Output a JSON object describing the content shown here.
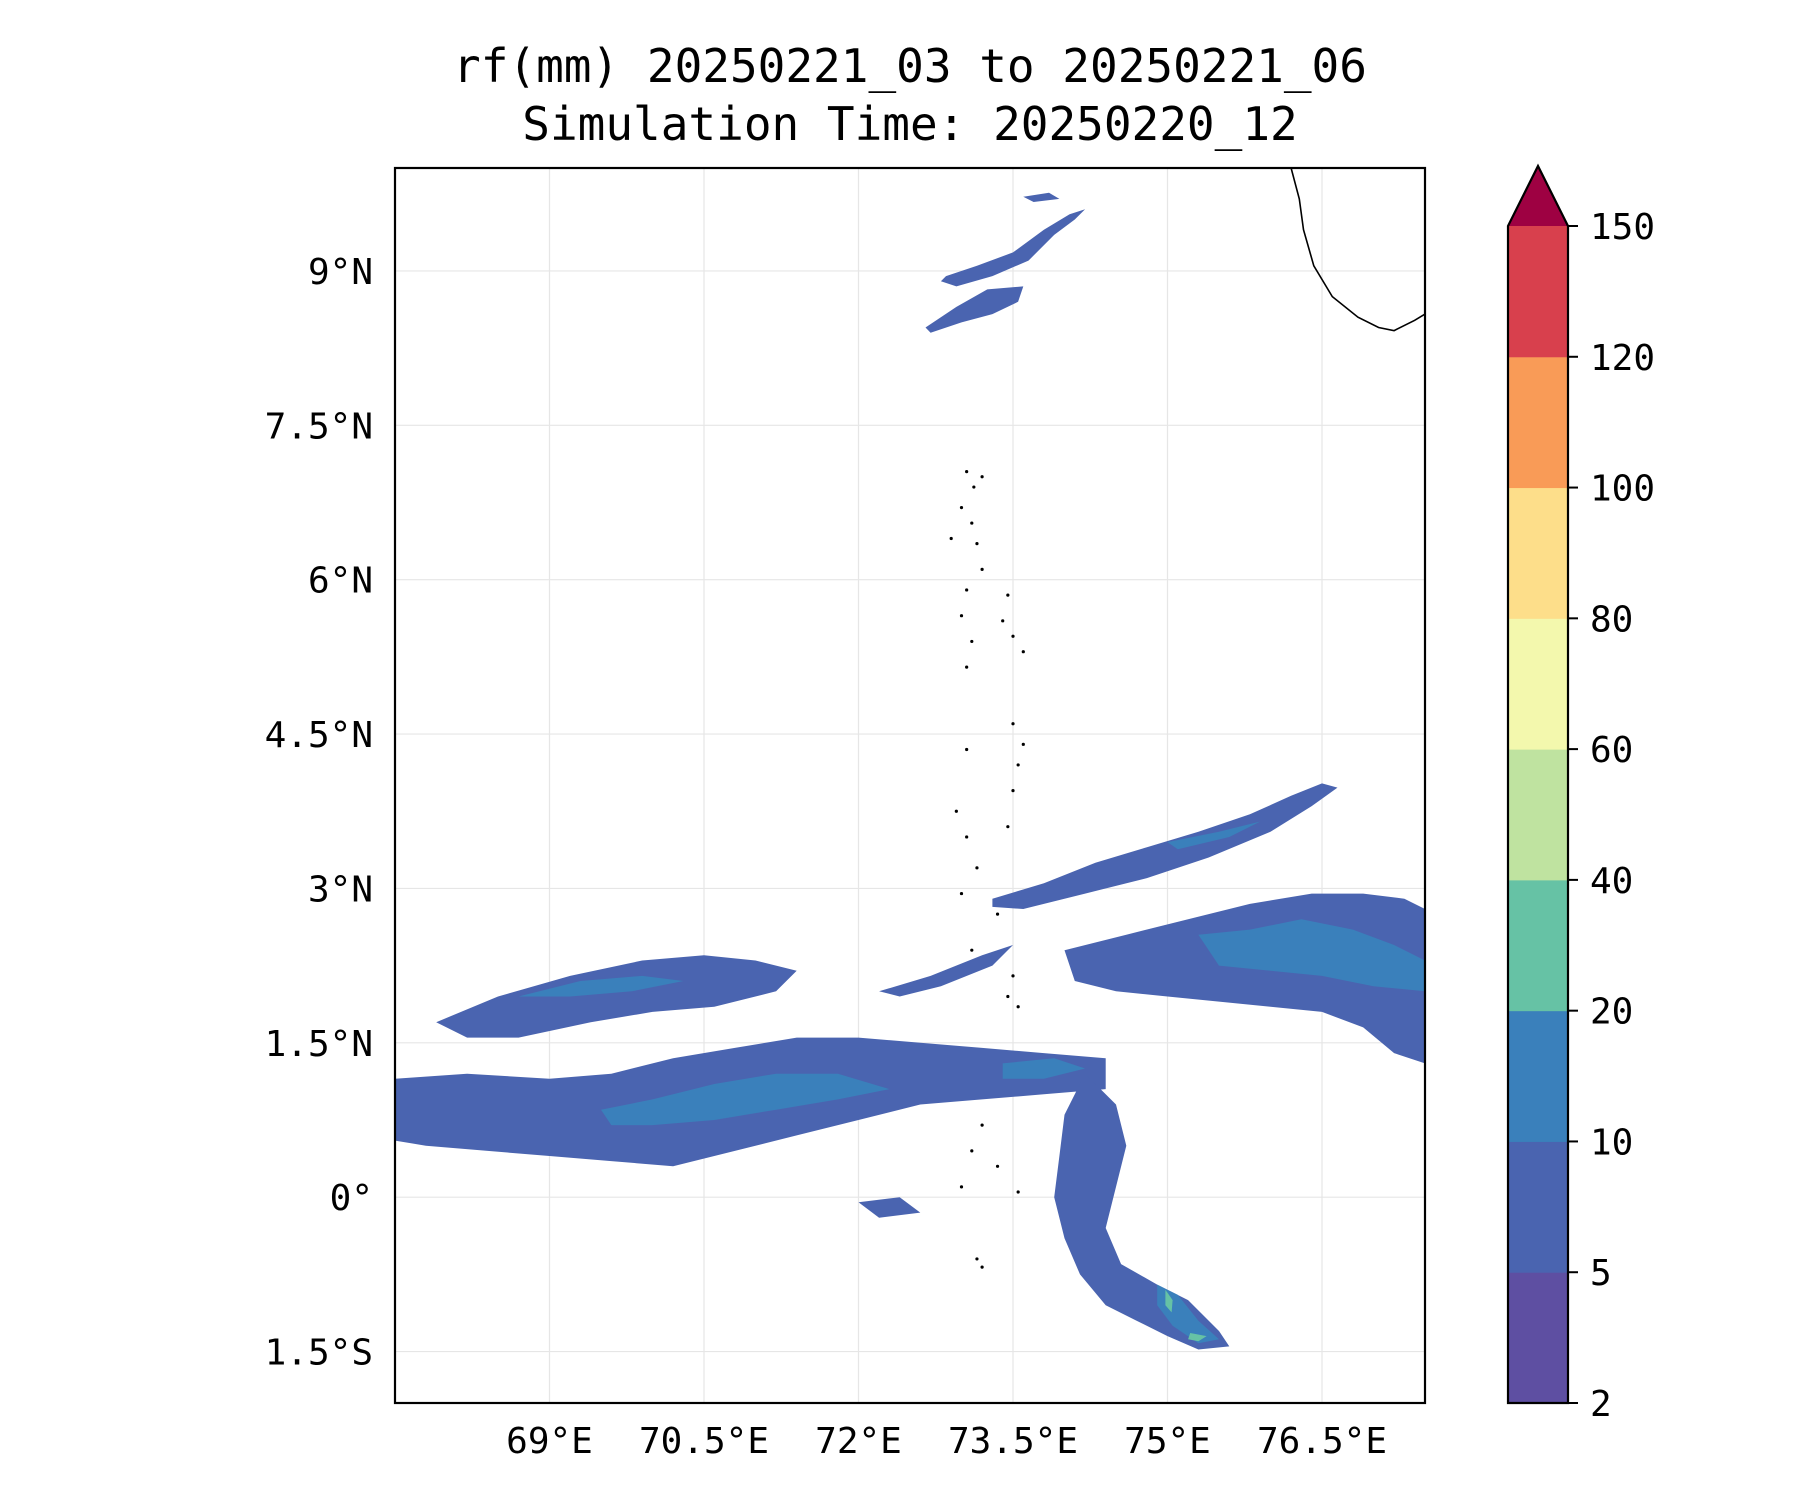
{
  "chart_data": {
    "type": "heatmap",
    "title": "rf(mm) 20250221_03 to 20250221_06",
    "subtitle": "Simulation Time: 20250220_12",
    "xlabel": "",
    "ylabel": "",
    "xlim": [
      67.5,
      77.5
    ],
    "ylim": [
      -2.0,
      10.0
    ],
    "x_ticks": [
      69,
      70.5,
      72,
      73.5,
      75,
      76.5
    ],
    "x_tick_labels": [
      "69°E",
      "70.5°E",
      "72°E",
      "73.5°E",
      "75°E",
      "76.5°E"
    ],
    "y_ticks": [
      9,
      7.5,
      6,
      4.5,
      3,
      1.5,
      0,
      -1.5
    ],
    "y_tick_labels": [
      "9°N",
      "7.5°N",
      "6°N",
      "4.5°N",
      "3°N",
      "1.5°N",
      "0°",
      "1.5°S"
    ],
    "grid": true,
    "colorbar": {
      "levels": [
        2,
        5,
        10,
        20,
        40,
        60,
        80,
        100,
        120,
        150
      ],
      "labels": [
        "2",
        "5",
        "10",
        "20",
        "40",
        "60",
        "80",
        "100",
        "120",
        "150"
      ],
      "colors": [
        "#5e4fa2",
        "#4a64b0",
        "#3a80bb",
        "#66c2a5",
        "#bfe3a0",
        "#f3f8ad",
        "#fdde8a",
        "#f99b57",
        "#d8404d"
      ],
      "extend_color": "#9e0142",
      "extend": "max"
    },
    "rain_regions": [
      {
        "name": "northern-band-upper",
        "level": 1,
        "points": [
          [
            72.85,
            8.95
          ],
          [
            73.15,
            9.05
          ],
          [
            73.5,
            9.18
          ],
          [
            73.8,
            9.4
          ],
          [
            74.05,
            9.55
          ],
          [
            74.2,
            9.6
          ],
          [
            74.1,
            9.5
          ],
          [
            73.9,
            9.35
          ],
          [
            73.65,
            9.1
          ],
          [
            73.3,
            8.95
          ],
          [
            72.95,
            8.85
          ],
          [
            72.8,
            8.9
          ]
        ]
      },
      {
        "name": "northern-band-lower",
        "level": 1,
        "points": [
          [
            72.65,
            8.45
          ],
          [
            72.95,
            8.65
          ],
          [
            73.25,
            8.82
          ],
          [
            73.6,
            8.85
          ],
          [
            73.55,
            8.7
          ],
          [
            73.3,
            8.58
          ],
          [
            73.0,
            8.5
          ],
          [
            72.7,
            8.4
          ]
        ]
      },
      {
        "name": "northern-fleck",
        "level": 1,
        "points": [
          [
            73.6,
            9.72
          ],
          [
            73.85,
            9.76
          ],
          [
            73.95,
            9.7
          ],
          [
            73.7,
            9.67
          ]
        ]
      },
      {
        "name": "central-north-arm",
        "level": 1,
        "points": [
          [
            73.3,
            2.9
          ],
          [
            73.8,
            3.05
          ],
          [
            74.3,
            3.25
          ],
          [
            74.8,
            3.4
          ],
          [
            75.3,
            3.55
          ],
          [
            75.8,
            3.72
          ],
          [
            76.2,
            3.9
          ],
          [
            76.5,
            4.02
          ],
          [
            76.65,
            3.98
          ],
          [
            76.4,
            3.8
          ],
          [
            76.0,
            3.55
          ],
          [
            75.4,
            3.3
          ],
          [
            74.8,
            3.1
          ],
          [
            74.2,
            2.95
          ],
          [
            73.6,
            2.8
          ],
          [
            73.3,
            2.82
          ]
        ]
      },
      {
        "name": "eastern-mass",
        "level": 1,
        "points": [
          [
            74.0,
            2.4
          ],
          [
            74.6,
            2.55
          ],
          [
            75.2,
            2.7
          ],
          [
            75.8,
            2.85
          ],
          [
            76.4,
            2.95
          ],
          [
            76.9,
            2.95
          ],
          [
            77.3,
            2.9
          ],
          [
            77.5,
            2.8
          ],
          [
            77.5,
            1.3
          ],
          [
            77.2,
            1.4
          ],
          [
            76.9,
            1.65
          ],
          [
            76.5,
            1.8
          ],
          [
            76.0,
            1.85
          ],
          [
            75.5,
            1.9
          ],
          [
            75.0,
            1.95
          ],
          [
            74.5,
            2.0
          ],
          [
            74.1,
            2.1
          ]
        ]
      },
      {
        "name": "central-mid-band",
        "level": 1,
        "points": [
          [
            72.2,
            2.0
          ],
          [
            72.7,
            2.15
          ],
          [
            73.2,
            2.35
          ],
          [
            73.5,
            2.45
          ],
          [
            73.3,
            2.25
          ],
          [
            72.8,
            2.05
          ],
          [
            72.4,
            1.95
          ]
        ]
      },
      {
        "name": "western-upper-band",
        "level": 1,
        "points": [
          [
            67.9,
            1.7
          ],
          [
            68.5,
            1.95
          ],
          [
            69.2,
            2.15
          ],
          [
            69.9,
            2.3
          ],
          [
            70.5,
            2.35
          ],
          [
            71.0,
            2.3
          ],
          [
            71.4,
            2.2
          ],
          [
            71.2,
            2.0
          ],
          [
            70.6,
            1.85
          ],
          [
            70.0,
            1.8
          ],
          [
            69.4,
            1.7
          ],
          [
            68.7,
            1.55
          ],
          [
            68.2,
            1.55
          ]
        ]
      },
      {
        "name": "western-main-band",
        "level": 1,
        "points": [
          [
            67.5,
            1.15
          ],
          [
            68.2,
            1.2
          ],
          [
            69.0,
            1.15
          ],
          [
            69.6,
            1.2
          ],
          [
            70.2,
            1.35
          ],
          [
            70.8,
            1.45
          ],
          [
            71.4,
            1.55
          ],
          [
            72.0,
            1.55
          ],
          [
            72.6,
            1.5
          ],
          [
            73.2,
            1.45
          ],
          [
            73.8,
            1.4
          ],
          [
            74.4,
            1.35
          ],
          [
            74.4,
            1.05
          ],
          [
            73.8,
            1.0
          ],
          [
            73.2,
            0.95
          ],
          [
            72.6,
            0.9
          ],
          [
            72.0,
            0.75
          ],
          [
            71.4,
            0.6
          ],
          [
            70.8,
            0.45
          ],
          [
            70.2,
            0.3
          ],
          [
            69.6,
            0.35
          ],
          [
            69.0,
            0.4
          ],
          [
            68.4,
            0.45
          ],
          [
            67.8,
            0.5
          ],
          [
            67.5,
            0.55
          ]
        ]
      },
      {
        "name": "southern-arm",
        "level": 1,
        "points": [
          [
            74.2,
            1.2
          ],
          [
            74.5,
            0.9
          ],
          [
            74.6,
            0.5
          ],
          [
            74.5,
            0.1
          ],
          [
            74.4,
            -0.3
          ],
          [
            74.55,
            -0.65
          ],
          [
            74.9,
            -0.85
          ],
          [
            75.2,
            -1.0
          ],
          [
            75.5,
            -1.3
          ],
          [
            75.6,
            -1.45
          ],
          [
            75.3,
            -1.48
          ],
          [
            75.0,
            -1.35
          ],
          [
            74.7,
            -1.2
          ],
          [
            74.4,
            -1.05
          ],
          [
            74.15,
            -0.75
          ],
          [
            74.0,
            -0.4
          ],
          [
            73.9,
            0.0
          ],
          [
            73.95,
            0.4
          ],
          [
            74.0,
            0.8
          ]
        ]
      },
      {
        "name": "southern-west-fleck",
        "level": 1,
        "points": [
          [
            72.0,
            -0.05
          ],
          [
            72.4,
            0.0
          ],
          [
            72.6,
            -0.15
          ],
          [
            72.2,
            -0.2
          ]
        ]
      },
      {
        "name": "eastern-core",
        "level": 2,
        "points": [
          [
            75.3,
            2.55
          ],
          [
            75.8,
            2.6
          ],
          [
            76.3,
            2.7
          ],
          [
            76.8,
            2.6
          ],
          [
            77.2,
            2.45
          ],
          [
            77.5,
            2.3
          ],
          [
            77.5,
            2.0
          ],
          [
            77.0,
            2.05
          ],
          [
            76.5,
            2.15
          ],
          [
            76.0,
            2.2
          ],
          [
            75.5,
            2.25
          ]
        ]
      },
      {
        "name": "western-core",
        "level": 2,
        "points": [
          [
            69.5,
            0.85
          ],
          [
            70.0,
            0.95
          ],
          [
            70.6,
            1.1
          ],
          [
            71.2,
            1.2
          ],
          [
            71.8,
            1.2
          ],
          [
            72.3,
            1.05
          ],
          [
            71.8,
            0.95
          ],
          [
            71.2,
            0.85
          ],
          [
            70.6,
            0.75
          ],
          [
            70.0,
            0.7
          ],
          [
            69.6,
            0.7
          ]
        ]
      },
      {
        "name": "western-upper-core",
        "level": 2,
        "points": [
          [
            68.7,
            1.95
          ],
          [
            69.3,
            2.1
          ],
          [
            69.9,
            2.15
          ],
          [
            70.3,
            2.1
          ],
          [
            69.8,
            2.0
          ],
          [
            69.2,
            1.95
          ]
        ]
      },
      {
        "name": "central-core",
        "level": 2,
        "points": [
          [
            73.4,
            1.3
          ],
          [
            73.9,
            1.35
          ],
          [
            74.2,
            1.25
          ],
          [
            73.8,
            1.15
          ],
          [
            73.4,
            1.15
          ]
        ]
      },
      {
        "name": "north-arm-core",
        "level": 2,
        "points": [
          [
            75.0,
            3.45
          ],
          [
            75.5,
            3.55
          ],
          [
            75.9,
            3.65
          ],
          [
            75.6,
            3.5
          ],
          [
            75.1,
            3.38
          ]
        ]
      },
      {
        "name": "southern-core",
        "level": 2,
        "points": [
          [
            74.9,
            -0.85
          ],
          [
            75.1,
            -0.95
          ],
          [
            75.3,
            -1.2
          ],
          [
            75.5,
            -1.38
          ],
          [
            75.3,
            -1.42
          ],
          [
            75.05,
            -1.25
          ],
          [
            74.9,
            -1.05
          ]
        ]
      },
      {
        "name": "southern-peak-a",
        "level": 3,
        "points": [
          [
            74.98,
            -0.9
          ],
          [
            75.05,
            -1.0
          ],
          [
            75.04,
            -1.12
          ],
          [
            74.98,
            -1.05
          ]
        ]
      },
      {
        "name": "southern-peak-b",
        "level": 3,
        "points": [
          [
            75.22,
            -1.32
          ],
          [
            75.38,
            -1.35
          ],
          [
            75.3,
            -1.4
          ],
          [
            75.2,
            -1.38
          ]
        ]
      }
    ],
    "coastline": [
      [
        76.2,
        10.0
      ],
      [
        76.28,
        9.7
      ],
      [
        76.32,
        9.4
      ],
      [
        76.42,
        9.05
      ],
      [
        76.6,
        8.75
      ],
      [
        76.85,
        8.55
      ],
      [
        77.05,
        8.45
      ],
      [
        77.2,
        8.42
      ],
      [
        77.4,
        8.52
      ],
      [
        77.5,
        8.58
      ]
    ],
    "islands": [
      [
        73.05,
        7.05
      ],
      [
        73.12,
        6.9
      ],
      [
        73.2,
        7.0
      ],
      [
        73.0,
        6.7
      ],
      [
        73.1,
        6.55
      ],
      [
        72.9,
        6.4
      ],
      [
        73.15,
        6.35
      ],
      [
        73.2,
        6.1
      ],
      [
        73.05,
        5.9
      ],
      [
        73.45,
        5.85
      ],
      [
        73.4,
        5.6
      ],
      [
        73.0,
        5.65
      ],
      [
        73.1,
        5.4
      ],
      [
        73.05,
        5.15
      ],
      [
        73.5,
        5.45
      ],
      [
        73.6,
        5.3
      ],
      [
        73.5,
        4.6
      ],
      [
        73.6,
        4.4
      ],
      [
        73.55,
        4.2
      ],
      [
        73.05,
        4.35
      ],
      [
        73.5,
        3.95
      ],
      [
        72.95,
        3.75
      ],
      [
        73.05,
        3.5
      ],
      [
        73.45,
        3.6
      ],
      [
        73.15,
        3.2
      ],
      [
        73.0,
        2.95
      ],
      [
        73.35,
        2.75
      ],
      [
        73.1,
        2.4
      ],
      [
        73.5,
        2.15
      ],
      [
        73.45,
        1.95
      ],
      [
        73.55,
        1.85
      ],
      [
        73.2,
        0.7
      ],
      [
        73.1,
        0.45
      ],
      [
        73.35,
        0.3
      ],
      [
        73.0,
        0.1
      ],
      [
        73.55,
        0.05
      ],
      [
        73.15,
        -0.6
      ],
      [
        73.2,
        -0.68
      ]
    ]
  }
}
